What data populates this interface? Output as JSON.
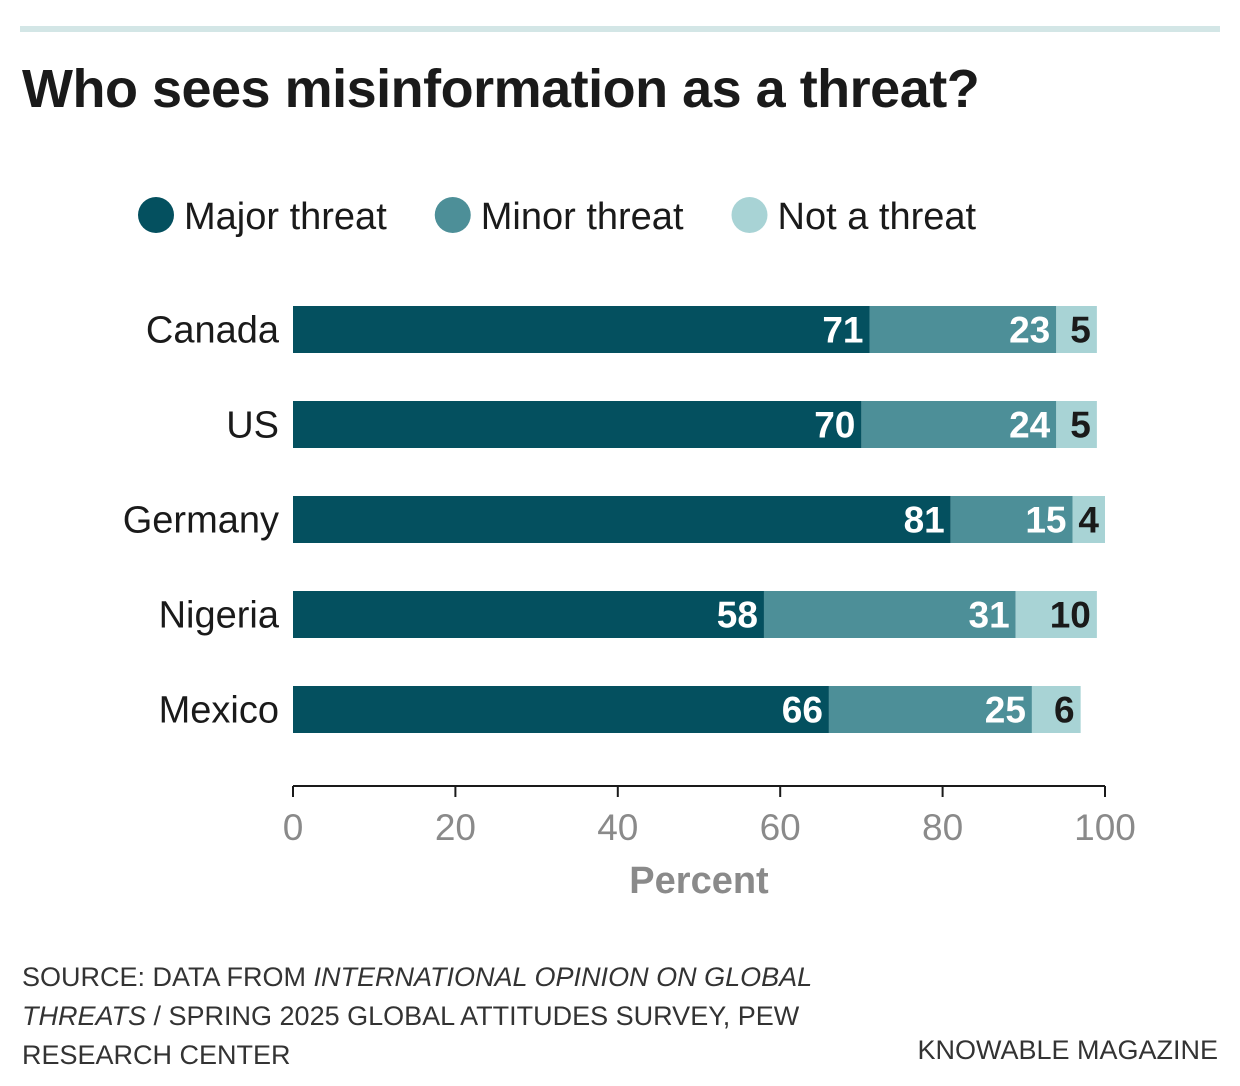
{
  "title": "Who sees misinformation as a threat?",
  "chart_data": {
    "type": "bar",
    "orientation": "horizontal",
    "stacked": true,
    "categories": [
      "Canada",
      "US",
      "Germany",
      "Nigeria",
      "Mexico"
    ],
    "series": [
      {
        "name": "Major threat",
        "color": "#04505f",
        "values": [
          71,
          70,
          81,
          58,
          66
        ]
      },
      {
        "name": "Minor threat",
        "color": "#4d8f98",
        "values": [
          23,
          24,
          15,
          31,
          25
        ]
      },
      {
        "name": "Not a threat",
        "color": "#a8d3d5",
        "values": [
          5,
          5,
          4,
          10,
          6
        ]
      }
    ],
    "xlabel": "Percent",
    "ylabel": "",
    "xlim": [
      0,
      100
    ],
    "xticks": [
      0,
      20,
      40,
      60,
      80,
      100
    ],
    "legend_position": "top",
    "grid": false
  },
  "footer": {
    "source_prefix": "SOURCE: DATA FROM ",
    "source_italic": "INTERNATIONAL OPINION ON GLOBAL THREATS",
    "source_suffix": " / SPRING 2025 GLOBAL ATTITUDES SURVEY, PEW RESEARCH CENTER",
    "brand": "KNOWABLE MAGAZINE"
  }
}
